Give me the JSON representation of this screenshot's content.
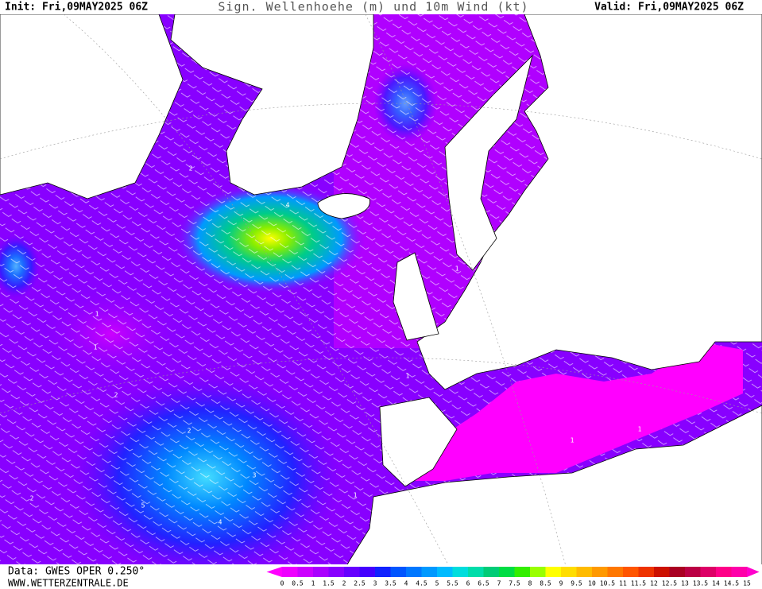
{
  "header": {
    "init": "Init: Fri,09MAY2025 06Z",
    "title": "Sign. Wellenhoehe (m) und 10m Wind (kt)",
    "valid": "Valid: Fri,09MAY2025 06Z"
  },
  "footer": {
    "data": "Data: GWES OPER 0.250°",
    "url": "WWW.WETTERZENTRALE.DE"
  },
  "map": {
    "contour_labels": [
      "1",
      "1",
      "2",
      "2",
      "4",
      "5",
      "4",
      "3",
      "2",
      "1",
      "2",
      "1",
      "1",
      "1",
      "1"
    ]
  },
  "colorbar": {
    "labels": [
      0,
      0.5,
      1,
      1.5,
      2,
      2.5,
      3,
      3.5,
      4,
      4.5,
      5,
      5.5,
      6,
      6.5,
      7,
      7.5,
      8,
      8.5,
      9,
      9.5,
      10,
      10.5,
      11,
      11.5,
      12,
      12.5,
      13,
      13.5,
      14,
      14.5,
      15
    ],
    "colors": [
      "#ff00ff",
      "#ee00ff",
      "#cc00ff",
      "#aa00ff",
      "#8800ff",
      "#6600ff",
      "#4400ff",
      "#1122ff",
      "#0055ff",
      "#0077ff",
      "#0099ff",
      "#00bbff",
      "#00dddd",
      "#00ddaa",
      "#00cc77",
      "#00dd44",
      "#33ee00",
      "#99ff00",
      "#ffff00",
      "#ffdd00",
      "#ffbb00",
      "#ff9900",
      "#ff7700",
      "#ff5500",
      "#ee3300",
      "#cc1100",
      "#aa0022",
      "#bb0044",
      "#dd0066",
      "#ff0088",
      "#ff00aa",
      "#ff00cc"
    ]
  }
}
